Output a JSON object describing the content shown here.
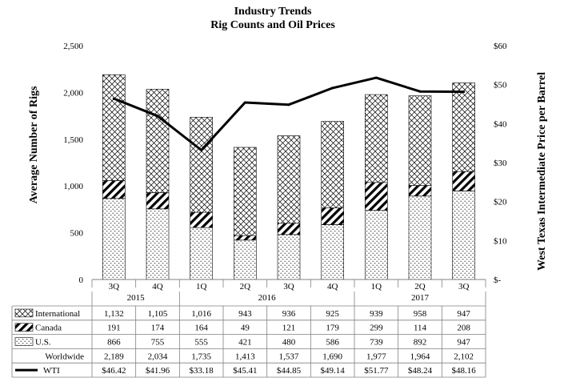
{
  "chart_data": {
    "type": "bar",
    "title": "Industry Trends",
    "subtitle": "Rig Counts and Oil Prices",
    "ylabel": "Average Number of Rigs",
    "y2label": "West Texas Intermediate Price per Barrel",
    "ylim": [
      0,
      2500
    ],
    "y_ticks": [
      "0",
      "500",
      "1,000",
      "1,500",
      "2,000",
      "2,500"
    ],
    "y2lim": [
      0,
      60
    ],
    "y2_ticks": [
      "$-",
      "$10",
      "$20",
      "$30",
      "$40",
      "$50",
      "$60"
    ],
    "quarters": [
      "3Q",
      "4Q",
      "1Q",
      "2Q",
      "3Q",
      "4Q",
      "1Q",
      "2Q",
      "3Q"
    ],
    "year_groups": [
      {
        "label": "2015",
        "count": 2
      },
      {
        "label": "2016",
        "count": 4
      },
      {
        "label": "2017",
        "count": 3
      }
    ],
    "stacked": true,
    "series": [
      {
        "name": "U.S.",
        "pattern": "dots",
        "values": [
          866,
          755,
          555,
          421,
          480,
          586,
          739,
          892,
          947
        ],
        "labels": [
          "866",
          "755",
          "555",
          "421",
          "480",
          "586",
          "739",
          "892",
          "947"
        ]
      },
      {
        "name": "Canada",
        "pattern": "diagonal",
        "values": [
          191,
          174,
          164,
          49,
          121,
          179,
          299,
          114,
          208
        ],
        "labels": [
          "191",
          "174",
          "164",
          "49",
          "121",
          "179",
          "299",
          "114",
          "208"
        ]
      },
      {
        "name": "International",
        "pattern": "crosshatch",
        "values": [
          1132,
          1105,
          1016,
          943,
          936,
          925,
          939,
          958,
          947
        ],
        "labels": [
          "1,132",
          "1,105",
          "1,016",
          "943",
          "936",
          "925",
          "939",
          "958",
          "947"
        ]
      }
    ],
    "worldwide": {
      "name": "Worldwide",
      "values": [
        2189,
        2034,
        1735,
        1413,
        1537,
        1690,
        1977,
        1964,
        2102
      ],
      "labels": [
        "2,189",
        "2,034",
        "1,735",
        "1,413",
        "1,537",
        "1,690",
        "1,977",
        "1,964",
        "2,102"
      ]
    },
    "wti": {
      "name": "WTI",
      "axis": "right",
      "type": "line",
      "values": [
        46.42,
        41.96,
        33.18,
        45.41,
        44.85,
        49.14,
        51.77,
        48.24,
        48.16
      ],
      "labels": [
        "$46.42",
        "$41.96",
        "$33.18",
        "$45.41",
        "$44.85",
        "$49.14",
        "$51.77",
        "$48.24",
        "$48.16"
      ]
    },
    "table_row_order": [
      "International",
      "Canada",
      "U.S.",
      "Worldwide",
      "WTI"
    ],
    "grid": false,
    "legend": "data-table"
  }
}
